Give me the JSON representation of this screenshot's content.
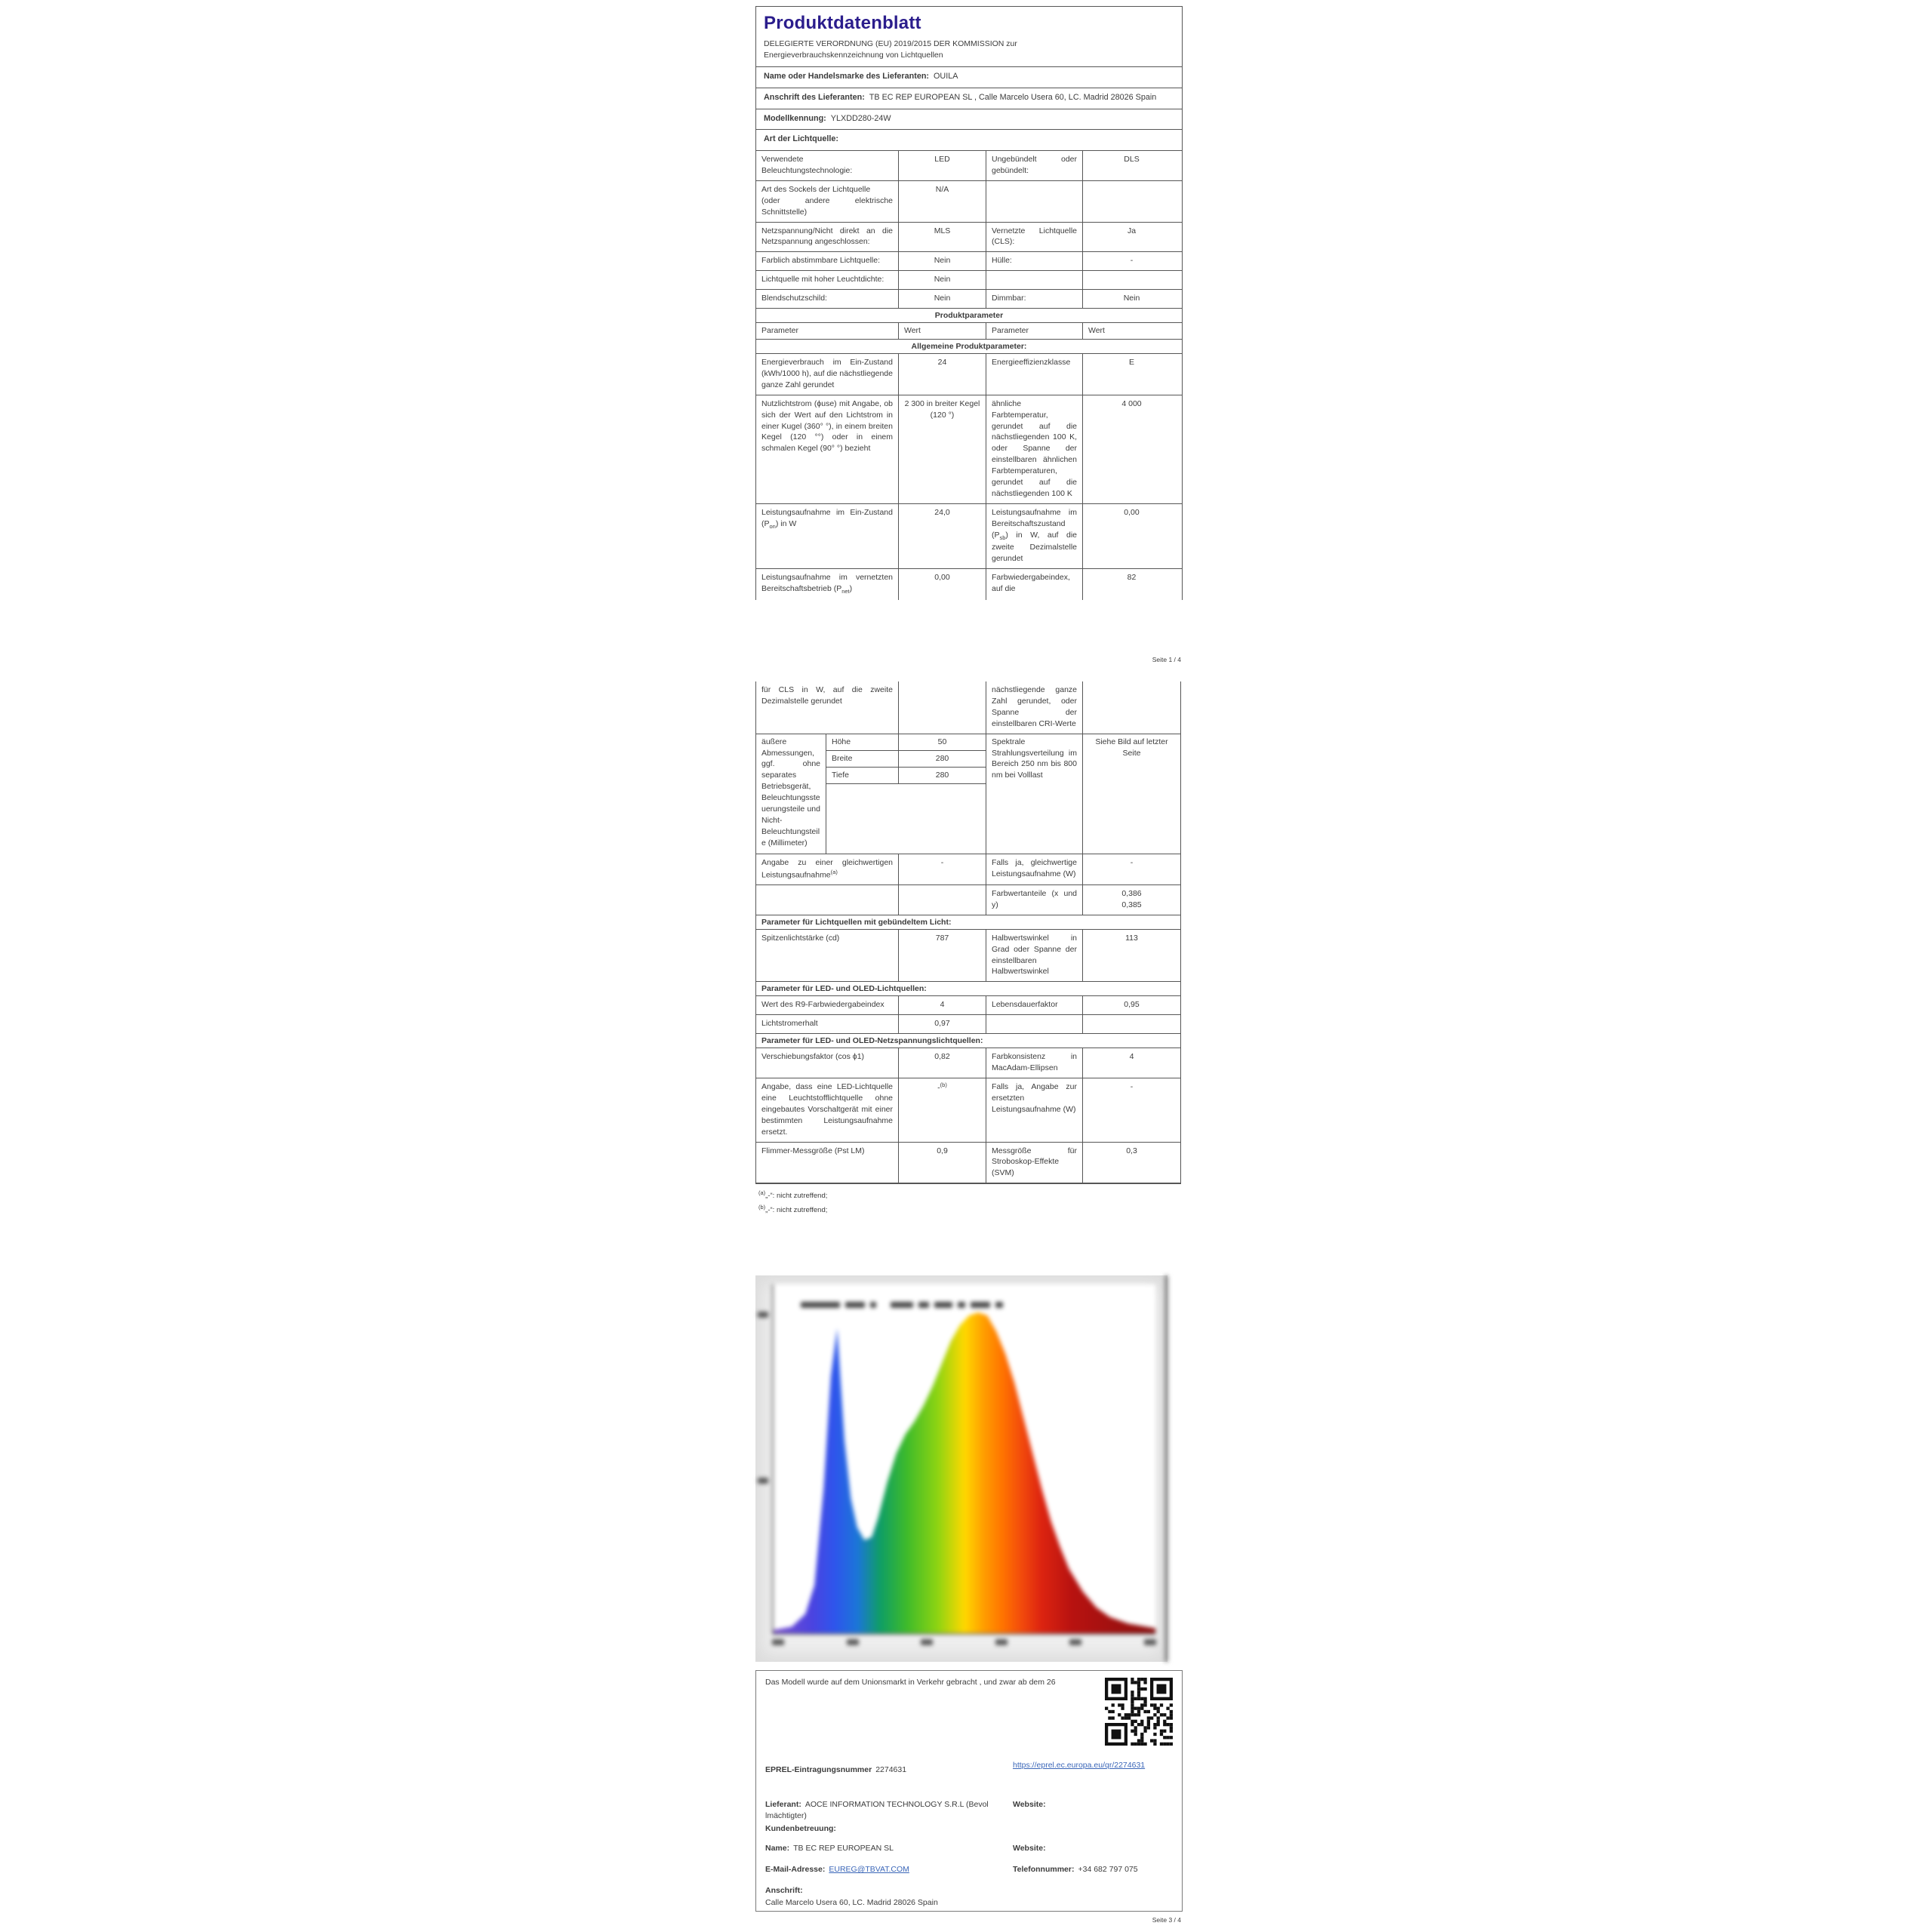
{
  "colors": {
    "title": "#2b1d8c",
    "link": "#3a66b8",
    "border": "#565656",
    "spectrum_blue": "#2e55ec",
    "spectrum_green": "#3fbb2a",
    "spectrum_orange": "#ff9e00",
    "spectrum_red": "#b81210"
  },
  "page1": {
    "title": "Produktdatenblatt",
    "regulation_line1": "DELEGIERTE VERORDNUNG (EU) 2019/2015 DER KOMMISSION zur",
    "regulation_line2": "Energieverbrauchskennzeichnung von Lichtquellen",
    "supplier_name_label": "Name oder Handelsmarke des Lieferanten:",
    "supplier_name": "OUILA",
    "supplier_address_label": "Anschrift des Lieferanten:",
    "supplier_address": "TB EC REP EUROPEAN SL , Calle Marcelo Usera 60, LC. Madrid 28026 Spain",
    "model_label": "Modellkennung:",
    "model": "YLXDD280-24W",
    "source_type_label": "Art der Lichtquelle:",
    "footer": "Seite 1 / 4"
  },
  "art_table": {
    "rows": [
      {
        "p1": "Verwendete Beleuchtungstechnologie:",
        "v1": "LED",
        "p2": "Ungebündelt oder gebündelt:",
        "v2": "DLS"
      },
      {
        "p1": "Art des Sockels der Lichtquelle\n(oder andere elektrische Schnittstelle)",
        "v1": "N/A",
        "p2": "",
        "v2": ""
      },
      {
        "p1": "Netzspannung/Nicht direkt an die Netzspannung angeschlossen:",
        "v1": "MLS",
        "p2": "Vernetzte Lichtquelle (CLS):",
        "v2": "Ja"
      },
      {
        "p1": "Farblich abstimmbare Lichtquelle:",
        "v1": "Nein",
        "p2": "Hülle:",
        "v2": "-"
      },
      {
        "p1": "Lichtquelle mit hoher Leuchtdichte:",
        "v1": "Nein",
        "p2": "",
        "v2": ""
      },
      {
        "p1": "Blendschutzschild:",
        "v1": "Nein",
        "p2": "Dimmbar:",
        "v2": "Nein"
      }
    ]
  },
  "pp1": {
    "table_header": "Produktparameter",
    "col_headers": [
      "Parameter",
      "Wert",
      "Parameter",
      "Wert"
    ],
    "section_header": "Allgemeine Produktparameter:",
    "rows": {
      "energie": {
        "p1": "Energieverbrauch im Ein-Zustand (kWh/1000 h), auf die nächstliegende ganze Zahl gerundet",
        "v1": "24",
        "p2": "Energieeffizienzklasse",
        "v2": "E"
      },
      "nutz": {
        "p1": "Nutzlichtstrom (ϕuse) mit Angabe, ob sich der Wert auf den Lichtstrom in einer Kugel (360° °), in einem breiten Kegel (120 °°) oder in einem schmalen Kegel (90° °) bezieht",
        "v1": "2 300 in breiter Kegel (120 °)",
        "p2": "ähnliche Farbtemperatur, gerundet auf die nächstliegenden 100 K, oder Spanne der einstellbaren ähnlichen Farbtemperaturen, gerundet auf die nächstliegenden 100 K",
        "v2": "4 000"
      },
      "pon": {
        "p1a": "Leistungsaufnahme im Ein-Zustand (P",
        "p1sub": "on",
        "p1b": ") in W",
        "v1": "24,0",
        "p2a": "Leistungsaufnahme im Bereitschaftszustand (P",
        "p2sub": "sb",
        "p2b": ") in W, auf die zweite Dezimalstelle gerundet",
        "v2": "0,00"
      },
      "pnet": {
        "p1a": "Leistungsaufnahme im vernetzten Bereitschaftsbetrieb (P",
        "p1sub": "net",
        "p1b": ")",
        "v1": "0,00",
        "p2": "Farbwiedergabeindex, auf die",
        "v2": "82"
      }
    }
  },
  "pp2": {
    "rows": {
      "cls": {
        "p1": "für CLS in W, auf die zweite Dezimalstelle gerundet",
        "v1": "",
        "p2": "nächstliegende ganze Zahl gerundet, oder Spanne der einstellbaren CRI-Werte",
        "v2": ""
      },
      "dims": {
        "label": "äußere Abmessungen, ggf. ohne separates Betriebsgerät, Beleuchtungssteuerungsteile und Nicht-Beleuchtungsteile (Millimeter)",
        "sub": [
          {
            "k": "Höhe",
            "v": "50"
          },
          {
            "k": "Breite",
            "v": "280"
          },
          {
            "k": "Tiefe",
            "v": "280"
          }
        ],
        "p2": "Spektrale Strahlungsverteilung im Bereich 250 nm bis 800 nm bei Volllast",
        "v2": "Siehe Bild auf letzter Seite"
      },
      "gleich": {
        "p1": "Angabe zu einer gleichwertigen Leistungsaufnahme",
        "p1sup": "(a)",
        "v1": "-",
        "p2": "Falls ja, gleichwertige Leistungsaufnahme (W)",
        "v2": "-"
      },
      "farbwert": {
        "p1": "",
        "v1": "",
        "p2": "Farbwertanteile (x und y)",
        "v2": "0,386\n0,385"
      },
      "spitzen": {
        "p1": "Spitzenlichtstärke (cd)",
        "v1": "787",
        "p2": "Halbwertswinkel in Grad oder Spanne der einstellbaren Halbwertswinkel",
        "v2": "113"
      },
      "r9": {
        "p1": "Wert des R9-Farbwiedergabeindex",
        "v1": "4",
        "p2": "Lebensdauerfaktor",
        "v2": "0,95"
      },
      "licht": {
        "p1": "Lichtstromerhalt",
        "v1": "0,97",
        "p2": "",
        "v2": ""
      },
      "versch": {
        "p1": "Verschiebungsfaktor (cos ϕ1)",
        "v1": "0,82",
        "p2": "Farbkonsistenz in MacAdam-Ellipsen",
        "v2": "4"
      },
      "led_ersatz": {
        "p1": "Angabe, dass eine LED-Lichtquelle eine Leuchtstofflichtquelle ohne eingebautes Vorschaltgerät mit einer bestimmten Leistungsaufnahme ersetzt.",
        "v1a": "-",
        "v1sup": "(b)",
        "p2": "Falls ja, Angabe zur ersetzten Leistungsaufnahme (W)",
        "v2": "-"
      },
      "flimmer": {
        "p1": "Flimmer-Messgröße (Pst LM)",
        "v1": "0,9",
        "p2": "Messgröße für Stroboskop-Effekte (SVM)",
        "v2": "0,3"
      }
    },
    "section1": "Parameter für Lichtquellen mit gebündeltem Licht:",
    "section2": "Parameter für LED- und OLED-Lichtquellen:",
    "section3": "Parameter für LED- und OLED-Netzspannungslichtquellen:",
    "footnotes": [
      {
        "sup": "(a)",
        "text": "„-“: nicht zutreffend;"
      },
      {
        "sup": "(b)",
        "text": "„-“: nicht zutreffend;"
      }
    ]
  },
  "chart_data": {
    "type": "area",
    "title": "",
    "title_illegible": true,
    "tick_labels_illegible": true,
    "xlabel": "",
    "ylabel": "",
    "x_range": [
      380,
      800
    ],
    "x_ticks_count": 6,
    "x": [
      380,
      400,
      415,
      425,
      435,
      443,
      450,
      458,
      465,
      472,
      480,
      488,
      495,
      505,
      515,
      525,
      535,
      545,
      555,
      565,
      575,
      585,
      595,
      605,
      615,
      625,
      635,
      645,
      655,
      665,
      675,
      685,
      695,
      705,
      720,
      735,
      750,
      770,
      800
    ],
    "y": [
      0.01,
      0.02,
      0.06,
      0.15,
      0.45,
      0.8,
      0.95,
      0.6,
      0.42,
      0.33,
      0.29,
      0.3,
      0.36,
      0.47,
      0.56,
      0.62,
      0.66,
      0.71,
      0.77,
      0.84,
      0.91,
      0.96,
      0.99,
      1.0,
      0.99,
      0.94,
      0.87,
      0.78,
      0.67,
      0.56,
      0.45,
      0.35,
      0.27,
      0.2,
      0.13,
      0.08,
      0.05,
      0.03,
      0.015
    ],
    "note": "Spektrale Strahlungsverteilung der Lichtquelle; Abbildung im Original stark unscharf"
  },
  "page3": {
    "intro": "Das Modell wurde auf dem Unionsmarkt in Verkehr gebracht , und zwar ab dem 26",
    "eprel_label": "EPREL-Eintragungsnummer",
    "eprel_number": "2274631",
    "eprel_link": "https://eprel.ec.europa.eu/qr/2274631",
    "lieferant_label": "Lieferant:",
    "lieferant": "AOCE INFORMATION TECHNOLOGY S.R.L (Bevol lmächtigter)",
    "website_label": "Website:",
    "kunden_label": "Kundenbetreuung:",
    "name_label": "Name:",
    "name": "TB EC REP EUROPEAN SL",
    "website2_label": "Website:",
    "email_label": "E-Mail-Adresse:",
    "email": "EUREG@TBVAT.COM",
    "phone_label": "Telefonnummer:",
    "phone": "+34 682 797 075",
    "anschrift_label": "Anschrift:",
    "anschrift": "Calle Marcelo Usera 60, LC. Madrid 28026 Spain",
    "footer": "Seite 3 / 4"
  }
}
